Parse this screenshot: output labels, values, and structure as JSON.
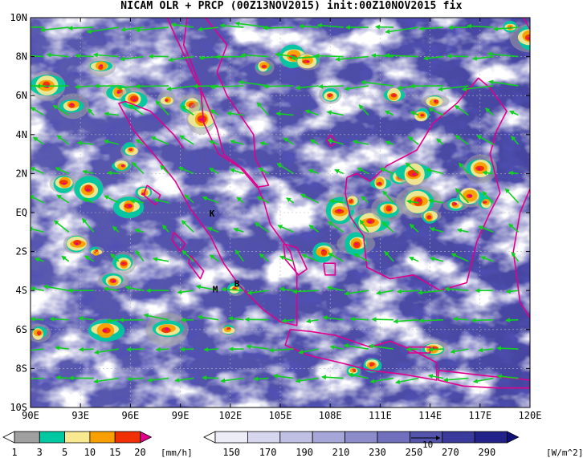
{
  "title": "NICAM OLR + PRCP (00Z13NOV2015) init:00Z10NOV2015 fix",
  "map": {
    "lon_labels": [
      "90E",
      "93E",
      "96E",
      "99E",
      "102E",
      "105E",
      "108E",
      "111E",
      "114E",
      "117E",
      "120E"
    ],
    "lat_labels": [
      "10N",
      "8N",
      "6N",
      "4N",
      "2N",
      "EQ",
      "2S",
      "4S",
      "6S",
      "8S",
      "10S"
    ],
    "extent": {
      "lon_min": 90,
      "lon_max": 120,
      "lat_min": -10,
      "lat_max": 10
    },
    "place_markers": [
      {
        "text": "K",
        "lon": 100.9,
        "lat": -0.2
      },
      {
        "text": "M",
        "lon": 101.1,
        "lat": -4.1
      },
      {
        "text": "B",
        "lon": 102.4,
        "lat": -3.8
      }
    ],
    "wind_vector_reference": "10"
  },
  "precip_colorbar": {
    "ticks": [
      "1",
      "3",
      "5",
      "10",
      "15",
      "20"
    ],
    "unit": "[mm/h]",
    "colors": [
      "#ffffff",
      "#a0a0a0",
      "#00c8a0",
      "#f8e890",
      "#f8a000",
      "#f03000",
      "#e0008c"
    ]
  },
  "olr_colorbar": {
    "ticks": [
      "150",
      "170",
      "190",
      "210",
      "230",
      "250",
      "270",
      "290"
    ],
    "unit": "[W/m^2]",
    "colors": [
      "#ffffff",
      "#ececf6",
      "#d6d6ee",
      "#c0c0e4",
      "#a6a6d8",
      "#8c8cca",
      "#7070bc",
      "#5454ad",
      "#3a3a9c",
      "#22228a",
      "#101078"
    ]
  },
  "colors": {
    "coastline": "#e0008c",
    "wind_vectors": "#10d020",
    "grid": "#b8b8b8"
  }
}
